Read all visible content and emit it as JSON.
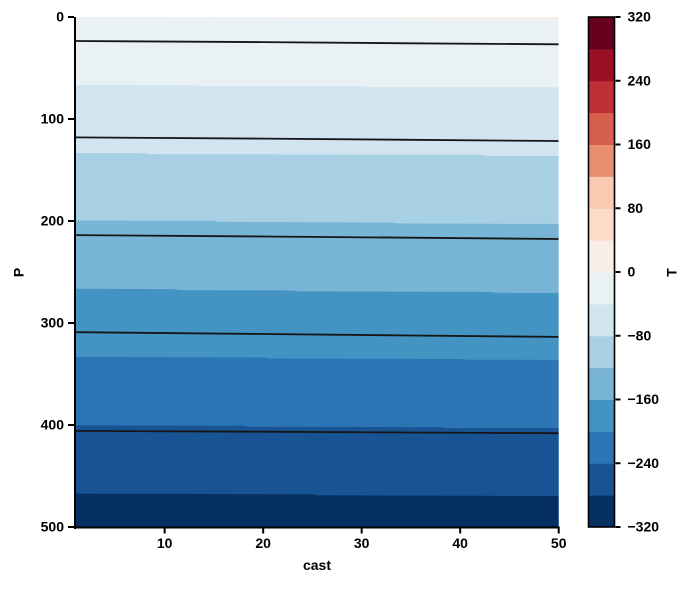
{
  "chart_data": {
    "type": "filled_contour",
    "title": "",
    "xlabel": "cast",
    "ylabel": "P",
    "colorbar_label": "T",
    "x_range": [
      1,
      50
    ],
    "y_range": [
      0,
      500
    ],
    "y_axis_inverted": true,
    "grid": false,
    "x_ticks": [
      10,
      20,
      30,
      40,
      50
    ],
    "y_ticks": [
      0,
      100,
      200,
      300,
      400,
      500
    ],
    "levels_min": -320,
    "levels_max": 320,
    "levels_step": 40,
    "band_colors_low_to_high": [
      "#053061",
      "#185493",
      "#2c75b4",
      "#4393c3",
      "#78b4d5",
      "#a7d0e4",
      "#d1e5f0",
      "#eaf1f5",
      "#f9eee7",
      "#fddbc7",
      "#fac9b0",
      "#ea8e70",
      "#d6604d",
      "#be3036",
      "#991027",
      "#67001f"
    ],
    "top_band_level": 40,
    "fill_boundaries": [
      {
        "level": 0,
        "points": [
          [
            1,
            -0.8
          ],
          [
            10,
            -0.8
          ],
          [
            10.5,
            0.2
          ],
          [
            22,
            0.5
          ],
          [
            22.5,
            1.1
          ],
          [
            36,
            1.4
          ],
          [
            36.5,
            2.0
          ],
          [
            50,
            2.4
          ]
        ]
      },
      {
        "level": -40,
        "points": [
          [
            1,
            66.6
          ],
          [
            13,
            66.8
          ],
          [
            13.5,
            67.7
          ],
          [
            30,
            67.9
          ],
          [
            30.5,
            68.5
          ],
          [
            50,
            68.8
          ]
        ]
      },
      {
        "level": -80,
        "points": [
          [
            1,
            133.4
          ],
          [
            8,
            133.5
          ],
          [
            8.5,
            134.4
          ],
          [
            42,
            135.1
          ],
          [
            42.5,
            136.1
          ],
          [
            50,
            136.4
          ]
        ]
      },
      {
        "level": -120,
        "points": [
          [
            1,
            199.5
          ],
          [
            15,
            199.8
          ],
          [
            15.5,
            200.9
          ],
          [
            33,
            201.5
          ],
          [
            33.5,
            202.4
          ],
          [
            50,
            202.9
          ]
        ]
      },
      {
        "level": -160,
        "points": [
          [
            1,
            266.5
          ],
          [
            11,
            266.8
          ],
          [
            11.5,
            267.9
          ],
          [
            23,
            268.1
          ],
          [
            23.5,
            269.0
          ],
          [
            43,
            269.5
          ],
          [
            43.5,
            270.4
          ],
          [
            50,
            270.7
          ]
        ]
      },
      {
        "level": -200,
        "points": [
          [
            1,
            333.2
          ],
          [
            20,
            333.8
          ],
          [
            20.5,
            334.8
          ],
          [
            40,
            335.3
          ],
          [
            40.5,
            336.0
          ],
          [
            50,
            336.2
          ]
        ]
      },
      {
        "level": -240,
        "points": [
          [
            1,
            400.3
          ],
          [
            18,
            400.8
          ],
          [
            18.5,
            401.7
          ],
          [
            38,
            402.2
          ],
          [
            38.5,
            402.9
          ],
          [
            50,
            403.2
          ]
        ]
      },
      {
        "level": -280,
        "points": [
          [
            1,
            467.3
          ],
          [
            25,
            467.9
          ],
          [
            25.5,
            468.9
          ],
          [
            50,
            469.6
          ]
        ]
      }
    ],
    "overlay_contour_lines": [
      {
        "points": [
          [
            1,
            23.5
          ],
          [
            20,
            24.6
          ],
          [
            35,
            25.8
          ],
          [
            50,
            26.8
          ]
        ]
      },
      {
        "points": [
          [
            1,
            118.0
          ],
          [
            20,
            119.2
          ],
          [
            35,
            120.4
          ],
          [
            50,
            121.6
          ]
        ]
      },
      {
        "points": [
          [
            1,
            213.8
          ],
          [
            20,
            215.2
          ],
          [
            35,
            216.4
          ],
          [
            50,
            217.6
          ]
        ]
      },
      {
        "points": [
          [
            1,
            309.0
          ],
          [
            20,
            310.8
          ],
          [
            35,
            312.3
          ],
          [
            50,
            313.6
          ]
        ]
      },
      {
        "points": [
          [
            1,
            405.8
          ],
          [
            20,
            406.6
          ],
          [
            35,
            407.4
          ],
          [
            50,
            408.0
          ]
        ]
      }
    ],
    "contour_line_color": "#161616",
    "colorbar": {
      "tick_values": [
        -320,
        -240,
        -160,
        -80,
        0,
        80,
        160,
        240,
        320
      ],
      "tick_labels": [
        "−320",
        "−240",
        "−160",
        "−80",
        "0",
        "80",
        "160",
        "240",
        "320"
      ]
    },
    "axis_color": "#000000",
    "tick_label_color": "#000000"
  }
}
